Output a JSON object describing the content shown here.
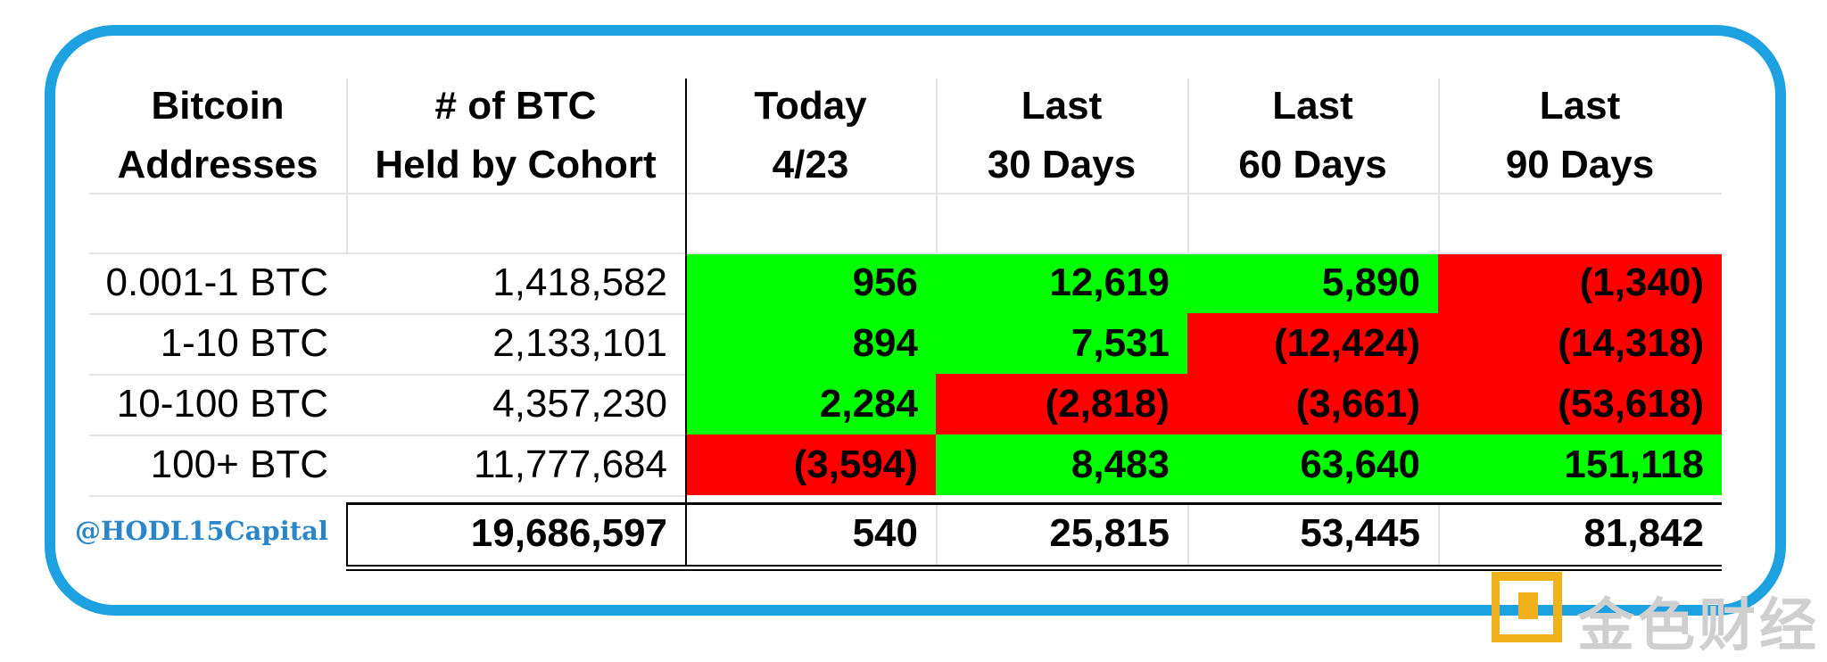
{
  "chart_data": {
    "type": "table",
    "columns": [
      {
        "id": "addresses",
        "lines": [
          "Bitcoin",
          "Addresses"
        ]
      },
      {
        "id": "held",
        "lines": [
          "# of BTC",
          "Held by Cohort"
        ]
      },
      {
        "id": "today",
        "lines": [
          "Today",
          "4/23"
        ]
      },
      {
        "id": "d30",
        "lines": [
          "Last",
          "30 Days"
        ]
      },
      {
        "id": "d60",
        "lines": [
          "Last",
          "60 Days"
        ]
      },
      {
        "id": "d90",
        "lines": [
          "Last",
          "90 Days"
        ]
      }
    ],
    "rows": [
      {
        "cohort": "0.001-1 BTC",
        "held": "1,418,582",
        "changes": [
          "956",
          "12,619",
          "5,890",
          "(1,340)"
        ],
        "signs": [
          "up",
          "up",
          "up",
          "down"
        ]
      },
      {
        "cohort": "1-10 BTC",
        "held": "2,133,101",
        "changes": [
          "894",
          "7,531",
          "(12,424)",
          "(14,318)"
        ],
        "signs": [
          "up",
          "up",
          "down",
          "down"
        ]
      },
      {
        "cohort": "10-100 BTC",
        "held": "4,357,230",
        "changes": [
          "2,284",
          "(2,818)",
          "(3,661)",
          "(53,618)"
        ],
        "signs": [
          "up",
          "down",
          "down",
          "down"
        ]
      },
      {
        "cohort": "100+ BTC",
        "held": "11,777,684",
        "changes": [
          "(3,594)",
          "8,483",
          "63,640",
          "151,118"
        ],
        "signs": [
          "down",
          "up",
          "up",
          "up"
        ]
      }
    ],
    "total": {
      "held": "19,686,597",
      "changes": [
        "540",
        "25,815",
        "53,445",
        "81,842"
      ]
    },
    "numeric": {
      "held": [
        1418582,
        2133101,
        4357230,
        11777684
      ],
      "changes": [
        [
          956,
          12619,
          5890,
          -1340
        ],
        [
          894,
          7531,
          -12424,
          -14318
        ],
        [
          2284,
          -2818,
          -3661,
          -53618
        ],
        [
          -3594,
          8483,
          63640,
          151118
        ]
      ],
      "total_held": 19686597,
      "total_changes": [
        540,
        25815,
        53445,
        81842
      ]
    },
    "colors": {
      "up": "#00ff00",
      "down": "#ff0000",
      "border": "#1da1e0"
    }
  },
  "credit": "@HODL15Capital",
  "watermark": {
    "text": "金色财经"
  }
}
